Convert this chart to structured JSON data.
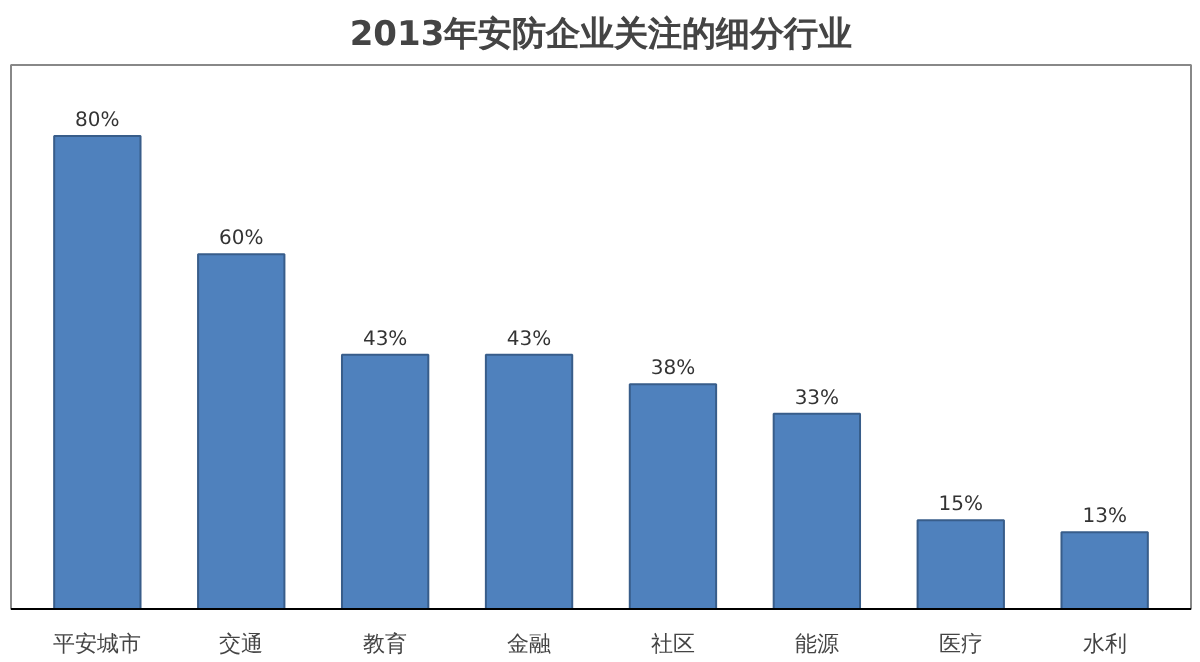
{
  "chart_data": {
    "type": "bar",
    "title": "2013年安防企业关注的细分行业",
    "categories": [
      "平安城市",
      "交通",
      "教育",
      "金融",
      "社区",
      "能源",
      "医疗",
      "水利"
    ],
    "values": [
      80,
      60,
      43,
      43,
      38,
      33,
      15,
      13
    ],
    "value_labels": [
      "80%",
      "60%",
      "43%",
      "43%",
      "38%",
      "33%",
      "15%",
      "13%"
    ],
    "color": "#4f81bd",
    "grid": false
  }
}
